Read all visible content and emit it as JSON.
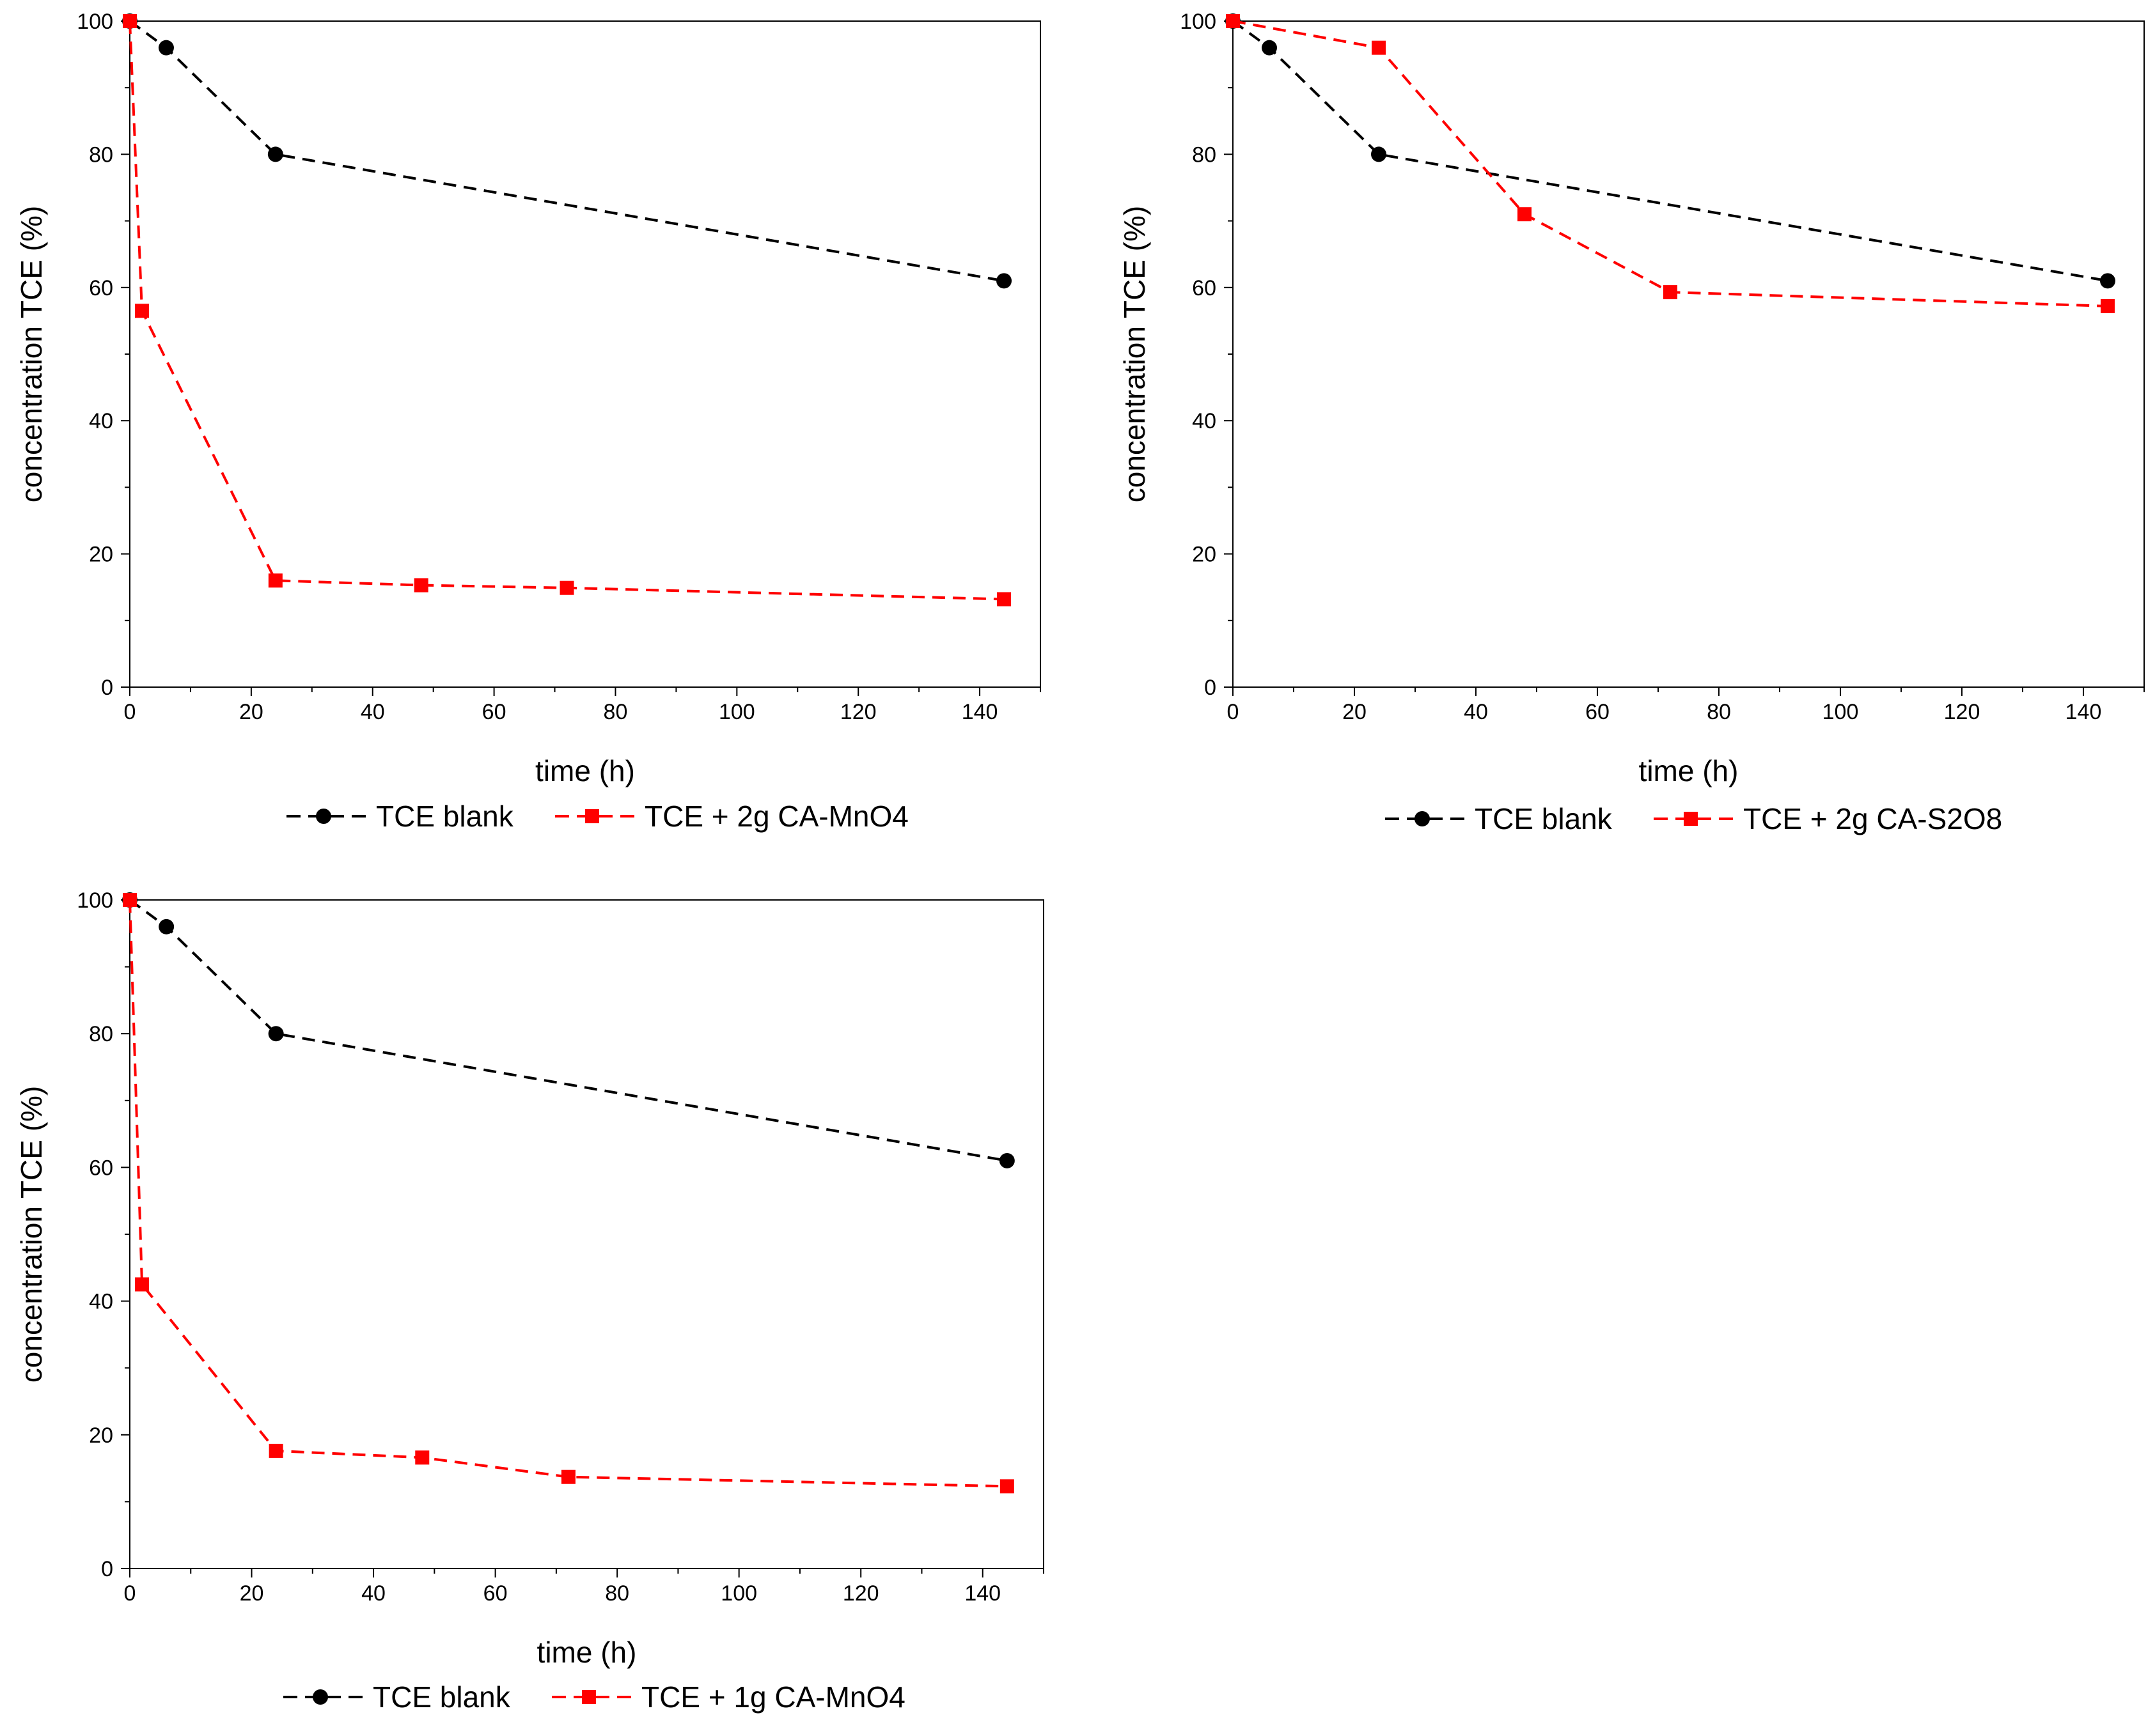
{
  "chart_data": [
    {
      "type": "line",
      "panel": "top-left",
      "title": "",
      "xlabel": "time (h)",
      "ylabel": "concentration TCE (%)",
      "xlim": [
        0,
        150
      ],
      "ylim": [
        0,
        100
      ],
      "x_major_ticks": [
        0,
        20,
        40,
        60,
        80,
        100,
        120,
        140
      ],
      "y_major_ticks": [
        0,
        20,
        40,
        60,
        80,
        100
      ],
      "grid": false,
      "legend_position": "bottom",
      "series": [
        {
          "name": "TCE blank",
          "color": "#000000",
          "marker": "circle",
          "x": [
            0,
            6,
            24,
            144
          ],
          "y": [
            100,
            96,
            80,
            61
          ]
        },
        {
          "name": "TCE + 2g CA-MnO4",
          "color": "#ff0000",
          "marker": "square",
          "x": [
            0,
            2,
            24,
            48,
            72,
            144
          ],
          "y": [
            100,
            56.5,
            16,
            15.3,
            14.9,
            13.2
          ]
        }
      ]
    },
    {
      "type": "line",
      "panel": "top-right",
      "title": "",
      "xlabel": "time (h)",
      "ylabel": "concentration TCE (%)",
      "xlim": [
        0,
        150
      ],
      "ylim": [
        0,
        100
      ],
      "x_major_ticks": [
        0,
        20,
        40,
        60,
        80,
        100,
        120,
        140
      ],
      "y_major_ticks": [
        0,
        20,
        40,
        60,
        80,
        100
      ],
      "grid": false,
      "legend_position": "bottom",
      "series": [
        {
          "name": "TCE blank",
          "color": "#000000",
          "marker": "circle",
          "x": [
            0,
            6,
            24,
            144
          ],
          "y": [
            100,
            96,
            80,
            61
          ]
        },
        {
          "name": "TCE + 2g CA-S2O8",
          "color": "#ff0000",
          "marker": "square",
          "x": [
            0,
            24,
            48,
            72,
            144
          ],
          "y": [
            100,
            96,
            71,
            59.3,
            57.2
          ]
        }
      ]
    },
    {
      "type": "line",
      "panel": "bottom-left",
      "title": "",
      "xlabel": "time (h)",
      "ylabel": "concentration TCE (%)",
      "xlim": [
        0,
        150
      ],
      "ylim": [
        0,
        100
      ],
      "x_major_ticks": [
        0,
        20,
        40,
        60,
        80,
        100,
        120,
        140
      ],
      "y_major_ticks": [
        0,
        20,
        40,
        60,
        80,
        100
      ],
      "grid": false,
      "legend_position": "bottom",
      "series": [
        {
          "name": "TCE blank",
          "color": "#000000",
          "marker": "circle",
          "x": [
            0,
            6,
            24,
            144
          ],
          "y": [
            100,
            96,
            80,
            61
          ]
        },
        {
          "name": "TCE + 1g CA-MnO4",
          "color": "#ff0000",
          "marker": "square",
          "x": [
            0,
            2,
            24,
            48,
            72,
            144
          ],
          "y": [
            100,
            42.5,
            17.6,
            16.6,
            13.7,
            12.3
          ]
        }
      ]
    }
  ]
}
